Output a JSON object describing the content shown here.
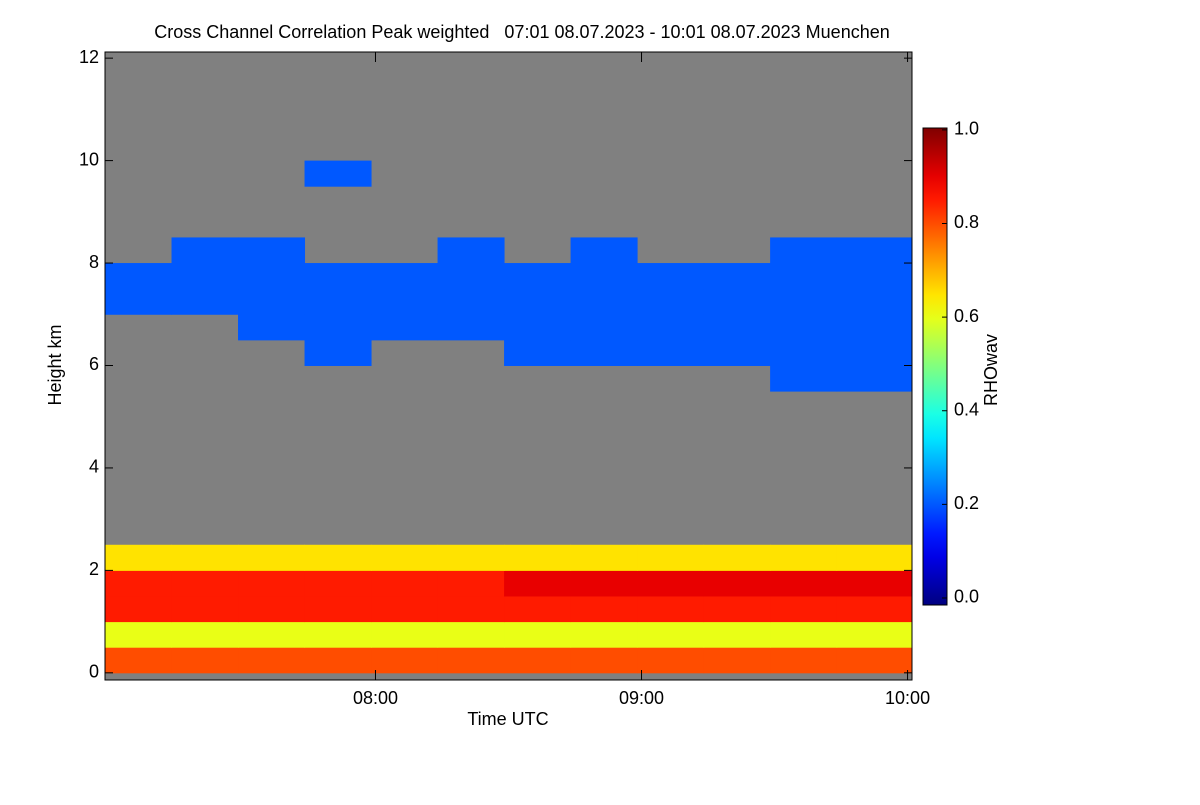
{
  "chart_data": {
    "type": "heatmap",
    "title": "Cross Channel Correlation Peak weighted   07:01 08.07.2023 - 10:01 08.07.2023 Muenchen",
    "x_label": "Time UTC",
    "y_label": "Height km",
    "colorbar_label": "RHOwav",
    "colormap": "jet",
    "background": "#808080",
    "xlim": [
      419,
      601
    ],
    "xticks": [
      {
        "value": 480,
        "label": "08:00"
      },
      {
        "value": 540,
        "label": "09:00"
      },
      {
        "value": 600,
        "label": "10:00"
      }
    ],
    "ylim": [
      -0.14,
      12.12
    ],
    "yticks": [
      0,
      2,
      4,
      6,
      8,
      10,
      12
    ],
    "clim": [
      -0.015,
      1.004
    ],
    "cticks": [
      {
        "value": 0,
        "label": "0.0"
      },
      {
        "value": 0.2,
        "label": "0.2"
      },
      {
        "value": 0.4,
        "label": "0.4"
      },
      {
        "value": 0.6,
        "label": "0.6"
      },
      {
        "value": 0.8,
        "label": "0.8"
      },
      {
        "value": 1,
        "label": "1.0"
      }
    ],
    "x_edges": [
      419,
      434,
      449,
      464,
      479,
      494,
      509,
      524,
      539,
      554,
      569,
      584,
      601
    ],
    "y_edges": [
      0,
      0.5,
      1,
      1.5,
      2,
      2.5,
      3,
      3.5,
      4,
      4.5,
      5,
      5.5,
      6,
      6.5,
      7,
      7.5,
      8,
      8.5,
      9,
      9.5,
      10
    ],
    "z": [
      [
        0.8,
        0.8,
        0.8,
        0.8,
        0.8,
        0.8,
        0.8,
        0.8,
        0.8,
        0.8,
        0.8,
        0.8
      ],
      [
        0.6,
        0.6,
        0.6,
        0.6,
        0.6,
        0.6,
        0.6,
        0.6,
        0.6,
        0.6,
        0.6,
        0.6
      ],
      [
        0.85,
        0.85,
        0.85,
        0.85,
        0.85,
        0.85,
        0.85,
        0.85,
        0.85,
        0.85,
        0.85,
        0.85
      ],
      [
        0.85,
        0.85,
        0.85,
        0.85,
        0.85,
        0.85,
        0.9,
        0.9,
        0.9,
        0.9,
        0.9,
        0.9
      ],
      [
        0.65,
        0.65,
        0.65,
        0.65,
        0.65,
        0.65,
        0.65,
        0.65,
        0.65,
        0.65,
        0.65,
        0.65
      ],
      [
        null,
        null,
        null,
        null,
        null,
        null,
        null,
        null,
        null,
        null,
        null,
        null
      ],
      [
        null,
        null,
        null,
        null,
        null,
        null,
        null,
        null,
        null,
        null,
        null,
        null
      ],
      [
        null,
        null,
        null,
        null,
        null,
        null,
        null,
        null,
        null,
        null,
        null,
        null
      ],
      [
        null,
        null,
        null,
        null,
        null,
        null,
        null,
        null,
        null,
        null,
        null,
        null
      ],
      [
        null,
        null,
        null,
        null,
        null,
        null,
        null,
        null,
        null,
        null,
        null,
        null
      ],
      [
        null,
        null,
        null,
        null,
        null,
        null,
        null,
        null,
        null,
        null,
        null,
        null
      ],
      [
        null,
        null,
        null,
        null,
        null,
        null,
        null,
        null,
        null,
        null,
        0.2,
        0.2
      ],
      [
        null,
        null,
        null,
        0.2,
        null,
        null,
        0.2,
        0.2,
        0.2,
        0.2,
        0.2,
        0.2
      ],
      [
        null,
        null,
        0.2,
        0.2,
        0.2,
        0.2,
        0.2,
        0.2,
        0.2,
        0.2,
        0.2,
        0.2
      ],
      [
        0.2,
        0.2,
        0.2,
        0.2,
        0.2,
        0.2,
        0.2,
        0.2,
        0.2,
        0.2,
        0.2,
        0.2
      ],
      [
        0.2,
        0.2,
        0.2,
        0.2,
        0.2,
        0.2,
        0.2,
        0.2,
        0.2,
        0.2,
        0.2,
        0.2
      ],
      [
        null,
        0.2,
        0.2,
        null,
        null,
        0.2,
        null,
        0.2,
        null,
        null,
        0.2,
        0.2
      ],
      [
        null,
        null,
        null,
        null,
        null,
        null,
        null,
        null,
        null,
        null,
        null,
        null
      ],
      [
        null,
        null,
        null,
        null,
        null,
        null,
        null,
        null,
        null,
        null,
        null,
        null
      ],
      [
        null,
        null,
        null,
        0.2,
        null,
        null,
        null,
        null,
        null,
        null,
        null,
        null
      ]
    ]
  }
}
